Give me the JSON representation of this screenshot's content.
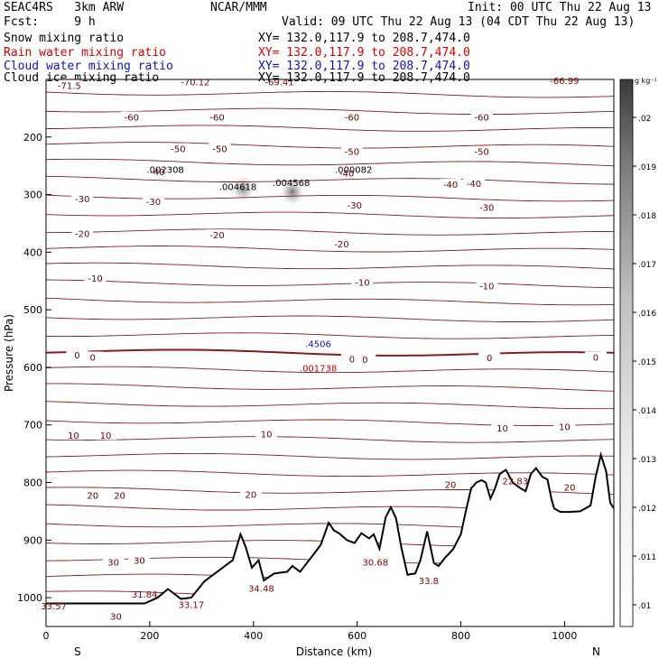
{
  "header": {
    "model": "SEAC4RS   3km ARW",
    "org": "NCAR/MMM",
    "init": "Init: 00 UTC Thu 22 Aug 13",
    "fcst": "Fcst:     9 h",
    "valid": "Valid: 09 UTC Thu 22 Aug 13 (04 CDT Thu 22 Aug 13)",
    "fields": [
      {
        "label": "Snow mixing ratio",
        "xy": "XY= 132.0,117.9 to 208.7,474.0",
        "color": "#000000"
      },
      {
        "label": "Rain water mixing ratio",
        "xy": "XY= 132.0,117.9 to 208.7,474.0",
        "color": "#e00000"
      },
      {
        "label": "Cloud water mixing ratio",
        "xy": "XY= 132.0,117.9 to 208.7,474.0",
        "color": "#1010d0"
      },
      {
        "label": "Cloud ice mixing ratio",
        "xy": "XY= 132.0,117.9 to 208.7,474.0",
        "color": "#000000"
      }
    ]
  },
  "chart_data": {
    "type": "cross-section",
    "xlabel": "Distance (km)",
    "ylabel": "Pressure (hPa)",
    "xlim": [
      0,
      1095
    ],
    "ylim": [
      1050,
      100
    ],
    "x_ticks": [
      0,
      200,
      400,
      600,
      800,
      1000
    ],
    "y_ticks": [
      200,
      300,
      400,
      500,
      600,
      700,
      800,
      900,
      1000
    ],
    "end_labels": {
      "left": "S",
      "right": "N"
    },
    "colorbar": {
      "unit": "g kg⁻¹",
      "levels": [
        ".01",
        ".011",
        ".012",
        ".013",
        ".014",
        ".015",
        ".016",
        ".017",
        ".018",
        ".019",
        ".02"
      ]
    },
    "temperature_contour_labels": [
      {
        "x": 45,
        "p": 110,
        "text": "-71.5"
      },
      {
        "x": 165,
        "p": 165,
        "text": "-60"
      },
      {
        "x": 330,
        "p": 165,
        "text": "-60"
      },
      {
        "x": 590,
        "p": 165,
        "text": "-60"
      },
      {
        "x": 840,
        "p": 165,
        "text": "-60"
      },
      {
        "x": 255,
        "p": 220,
        "text": "-50"
      },
      {
        "x": 335,
        "p": 220,
        "text": "-50"
      },
      {
        "x": 590,
        "p": 225,
        "text": "-50"
      },
      {
        "x": 840,
        "p": 225,
        "text": "-50"
      },
      {
        "x": 215,
        "p": 260,
        "text": "-40"
      },
      {
        "x": 580,
        "p": 262,
        "text": "-40"
      },
      {
        "x": 780,
        "p": 282,
        "text": "-40"
      },
      {
        "x": 825,
        "p": 280,
        "text": "-40"
      },
      {
        "x": 70,
        "p": 307,
        "text": "-30"
      },
      {
        "x": 207,
        "p": 312,
        "text": "-30"
      },
      {
        "x": 595,
        "p": 318,
        "text": "-30"
      },
      {
        "x": 850,
        "p": 322,
        "text": "-30"
      },
      {
        "x": 70,
        "p": 367,
        "text": "-20"
      },
      {
        "x": 330,
        "p": 370,
        "text": "-20"
      },
      {
        "x": 570,
        "p": 385,
        "text": "-20"
      },
      {
        "x": 95,
        "p": 445,
        "text": "-10"
      },
      {
        "x": 610,
        "p": 452,
        "text": "-10"
      },
      {
        "x": 850,
        "p": 458,
        "text": "-10"
      },
      {
        "x": 60,
        "p": 578,
        "text": "0"
      },
      {
        "x": 90,
        "p": 582,
        "text": "0"
      },
      {
        "x": 590,
        "p": 585,
        "text": "0"
      },
      {
        "x": 615,
        "p": 586,
        "text": "0"
      },
      {
        "x": 855,
        "p": 583,
        "text": "0"
      },
      {
        "x": 1060,
        "p": 582,
        "text": "0"
      },
      {
        "x": 53,
        "p": 718,
        "text": "10"
      },
      {
        "x": 115,
        "p": 718,
        "text": "10"
      },
      {
        "x": 425,
        "p": 715,
        "text": "10"
      },
      {
        "x": 880,
        "p": 705,
        "text": "10"
      },
      {
        "x": 1000,
        "p": 703,
        "text": "10"
      },
      {
        "x": 90,
        "p": 822,
        "text": "20"
      },
      {
        "x": 142,
        "p": 822,
        "text": "20"
      },
      {
        "x": 395,
        "p": 820,
        "text": "20"
      },
      {
        "x": 780,
        "p": 803,
        "text": "20"
      },
      {
        "x": 1010,
        "p": 808,
        "text": "20"
      },
      {
        "x": 130,
        "p": 938,
        "text": "30"
      },
      {
        "x": 180,
        "p": 935,
        "text": "30"
      },
      {
        "x": 135,
        "p": 1032,
        "text": "30"
      }
    ],
    "extrema": [
      {
        "x": 15,
        "p": 1020,
        "text": "33.57",
        "color": "#8b0000"
      },
      {
        "x": 190,
        "p": 1000,
        "text": "31.84",
        "color": "#8b0000"
      },
      {
        "x": 280,
        "p": 1018,
        "text": "33.17",
        "color": "#8b0000"
      },
      {
        "x": 415,
        "p": 990,
        "text": "34.48",
        "color": "#8b0000"
      },
      {
        "x": 635,
        "p": 944,
        "text": "30.68",
        "color": "#8b0000"
      },
      {
        "x": 738,
        "p": 976,
        "text": "33.8",
        "color": "#8b0000"
      },
      {
        "x": 905,
        "p": 803,
        "text": "22.83",
        "color": "#8b0000"
      },
      {
        "x": 288,
        "p": 110,
        "text": "-70.12",
        "color": "#8b0000"
      },
      {
        "x": 450,
        "p": 110,
        "text": "-69.41",
        "color": "#8b0000"
      },
      {
        "x": 1000,
        "p": 108,
        "text": "-66.99",
        "color": "#8b0000"
      },
      {
        "x": 230,
        "p": 262,
        "text": ".002308",
        "color": "#000000"
      },
      {
        "x": 370,
        "p": 292,
        "text": ".004618",
        "color": "#000000"
      },
      {
        "x": 473,
        "p": 285,
        "text": ".004568",
        "color": "#000000"
      },
      {
        "x": 593,
        "p": 262,
        "text": ".000082",
        "color": "#000000"
      },
      {
        "x": 525,
        "p": 565,
        "text": ".4506",
        "color": "#1010d0"
      },
      {
        "x": 525,
        "p": 607,
        "text": ".001738",
        "color": "#cc0000"
      }
    ],
    "terrain_pressure": [
      [
        0,
        1010
      ],
      [
        190,
        1010
      ],
      [
        215,
        1000
      ],
      [
        235,
        985
      ],
      [
        260,
        1002
      ],
      [
        280,
        1000
      ],
      [
        305,
        972
      ],
      [
        330,
        955
      ],
      [
        360,
        935
      ],
      [
        375,
        890
      ],
      [
        385,
        912
      ],
      [
        397,
        948
      ],
      [
        410,
        935
      ],
      [
        420,
        970
      ],
      [
        440,
        958
      ],
      [
        465,
        955
      ],
      [
        475,
        945
      ],
      [
        490,
        955
      ],
      [
        520,
        920
      ],
      [
        530,
        908
      ],
      [
        545,
        870
      ],
      [
        555,
        883
      ],
      [
        565,
        888
      ],
      [
        580,
        900
      ],
      [
        595,
        905
      ],
      [
        608,
        888
      ],
      [
        623,
        897
      ],
      [
        632,
        890
      ],
      [
        643,
        915
      ],
      [
        655,
        860
      ],
      [
        665,
        843
      ],
      [
        675,
        862
      ],
      [
        685,
        912
      ],
      [
        697,
        960
      ],
      [
        712,
        958
      ],
      [
        722,
        935
      ],
      [
        735,
        885
      ],
      [
        748,
        940
      ],
      [
        757,
        945
      ],
      [
        770,
        930
      ],
      [
        785,
        916
      ],
      [
        800,
        890
      ],
      [
        810,
        848
      ],
      [
        820,
        810
      ],
      [
        830,
        800
      ],
      [
        840,
        796
      ],
      [
        848,
        800
      ],
      [
        857,
        828
      ],
      [
        865,
        812
      ],
      [
        875,
        785
      ],
      [
        887,
        778
      ],
      [
        900,
        800
      ],
      [
        915,
        810
      ],
      [
        925,
        815
      ],
      [
        935,
        785
      ],
      [
        945,
        775
      ],
      [
        957,
        790
      ],
      [
        967,
        795
      ],
      [
        975,
        830
      ],
      [
        980,
        845
      ],
      [
        992,
        851
      ],
      [
        1010,
        851
      ],
      [
        1030,
        850
      ],
      [
        1040,
        845
      ],
      [
        1050,
        840
      ],
      [
        1060,
        790
      ],
      [
        1070,
        752
      ],
      [
        1080,
        780
      ],
      [
        1088,
        835
      ],
      [
        1095,
        845
      ]
    ],
    "cloud_shading": [
      {
        "x": 380,
        "p": 290,
        "intensity": 0.7
      },
      {
        "x": 475,
        "p": 295,
        "intensity": 0.8
      }
    ]
  }
}
